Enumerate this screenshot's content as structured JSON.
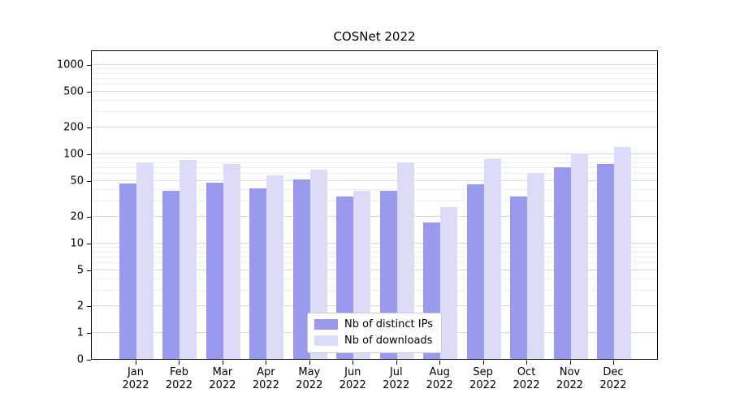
{
  "chart_data": {
    "type": "bar",
    "title": "COSNet 2022",
    "categories": [
      "Jan 2022",
      "Feb 2022",
      "Mar 2022",
      "Apr 2022",
      "May 2022",
      "Jun 2022",
      "Jul 2022",
      "Aug 2022",
      "Sep 2022",
      "Oct 2022",
      "Nov 2022",
      "Dec 2022"
    ],
    "series": [
      {
        "name": "Nb of distinct IPs",
        "color": "#9999ee",
        "values": [
          46,
          38,
          47,
          41,
          51,
          33,
          38,
          17,
          45,
          33,
          70,
          76
        ]
      },
      {
        "name": "Nb of downloads",
        "color": "#dcdcf9",
        "values": [
          80,
          84,
          77,
          57,
          66,
          38,
          80,
          25,
          87,
          60,
          100,
          118
        ]
      }
    ],
    "xlabel": "",
    "ylabel": "",
    "yscale": "symlog",
    "yticks": [
      0,
      1,
      2,
      5,
      10,
      20,
      50,
      100,
      200,
      500,
      1000
    ],
    "ylim": [
      0,
      1000
    ],
    "grid": true,
    "legend_position": "lower center"
  }
}
